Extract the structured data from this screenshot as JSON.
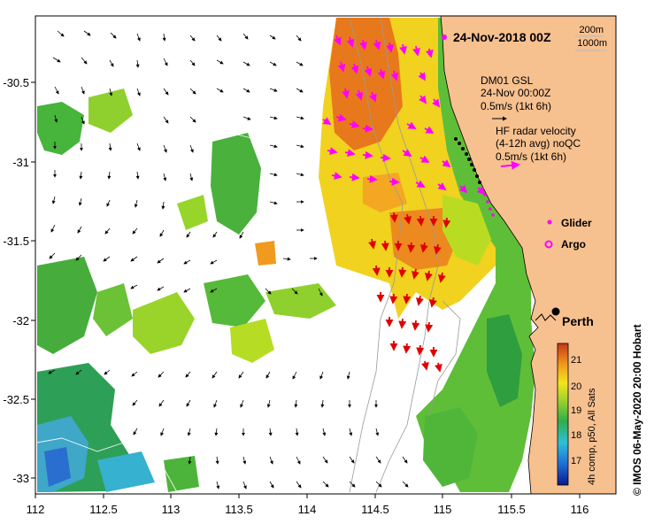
{
  "map": {
    "title": "24-Nov-2018 00Z",
    "bathymetry_legend": [
      "200m",
      "1000m"
    ],
    "gsl_label": {
      "line1": "DM01 GSL",
      "line2": "24-Nov 00:00Z",
      "line3": "0.5m/s (1kt 6h)"
    },
    "hf_label": {
      "line1": "HF radar velocity",
      "line2": "(4-12h avg) noQC",
      "line3": "0.5m/s (1kt 6h)"
    },
    "markers": {
      "glider": "Glider",
      "argo": "Argo",
      "city": "Perth"
    },
    "colorbar": {
      "label": "4h comp, p50, All Sats",
      "ticks": [
        "21",
        "20",
        "19",
        "18",
        "17"
      ]
    },
    "credit": "©  IMOS 06-May-2020 20:00 Hobart",
    "axes": {
      "x_ticks": [
        "112",
        "112.5",
        "113",
        "113.5",
        "114",
        "114.5",
        "115",
        "115.5",
        "116"
      ],
      "y_ticks": [
        "-30.5",
        "-31",
        "-31.5",
        "-32",
        "-32.5",
        "-33"
      ]
    },
    "colors": {
      "land": "#f7c08f",
      "ocean": "#ffffff",
      "glider_track": "#000000",
      "argo": "#ff00ff",
      "hf_vectors": [
        "#ff00ff",
        "#e00000"
      ],
      "sst_warm": "#e8761c",
      "sst_mid": "#f2e21a",
      "sst_cool": "#29a83b"
    }
  }
}
